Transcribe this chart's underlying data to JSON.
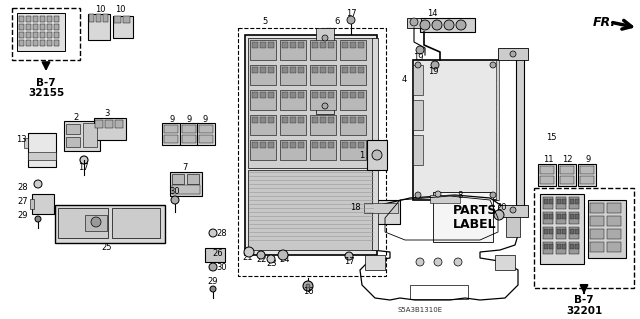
{
  "bg_color": "#ffffff",
  "fig_width": 6.4,
  "fig_height": 3.19,
  "dpi": 100,
  "line_color": "#000000",
  "text_color": "#000000",
  "label_fontsize": 6.0,
  "bold_fontsize": 7.5,
  "small_fontsize": 5.0,
  "parts_label_fs": 9.0,
  "diagram_code": "S5A3B1310E",
  "fr_text": "FR.",
  "b7_32155": "B-7\n32155",
  "b7_32201": "B-7\n32201",
  "parts_label": "PARTS\nLABEL"
}
